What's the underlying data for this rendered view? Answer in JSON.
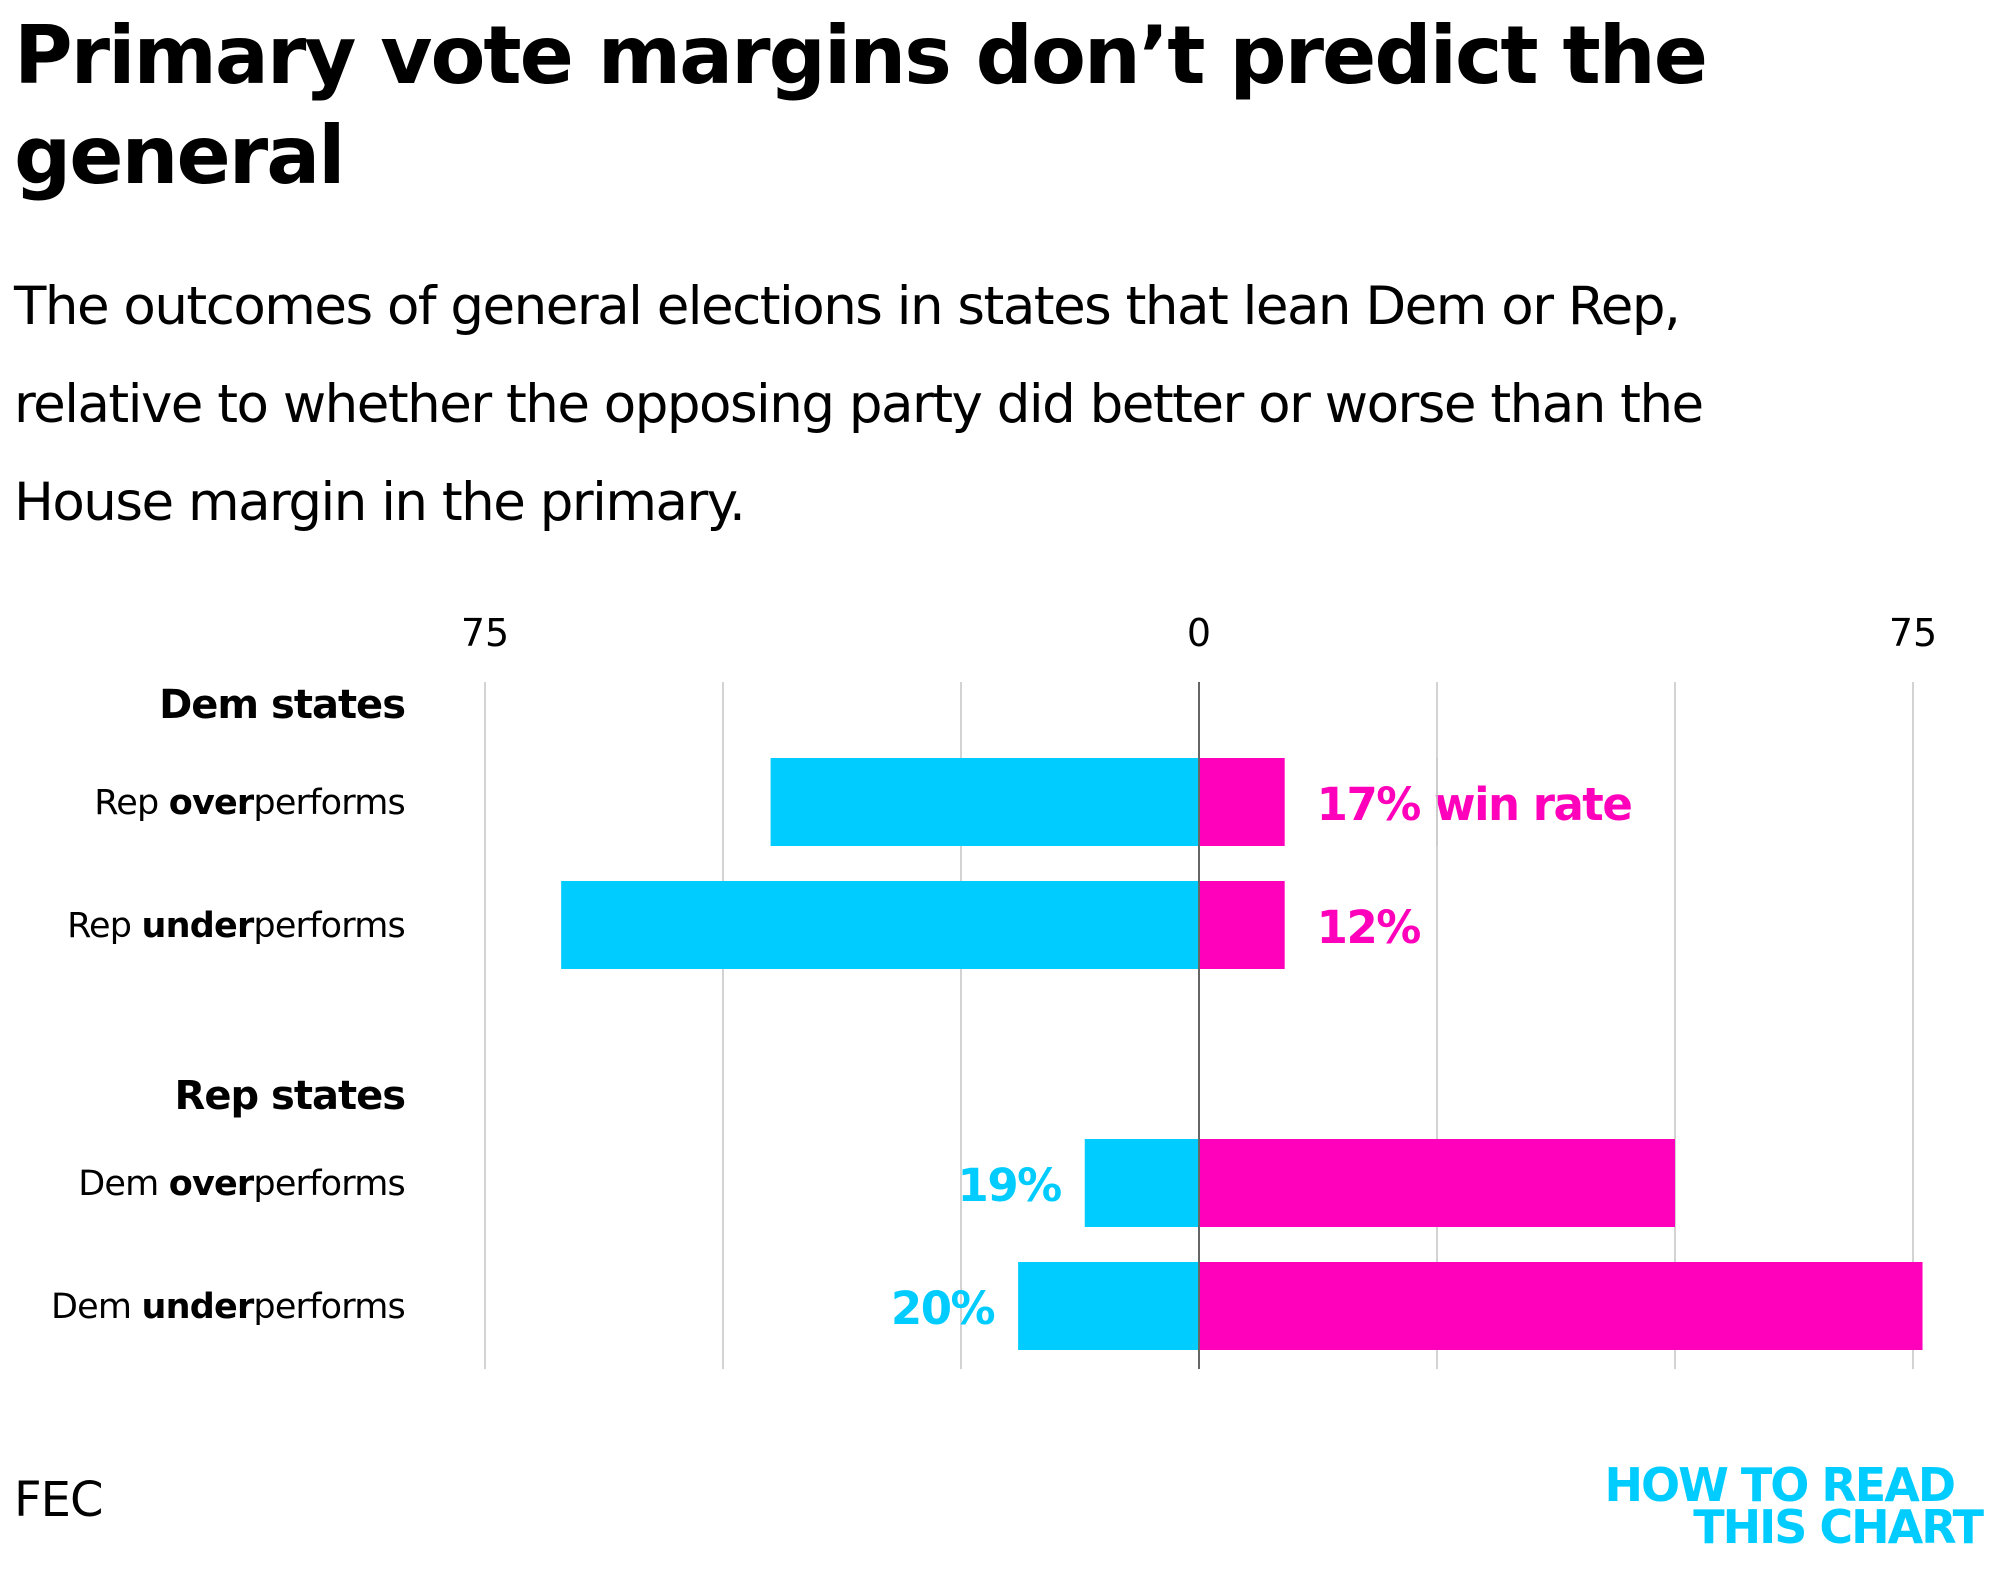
{
  "header": {
    "title": "Primary vote margins don’t predict the general",
    "subtitle": "The outcomes of general elections in states that lean Dem or Rep, relative to whether the opposing party did better or worse than the House margin in the primary."
  },
  "footer": {
    "source": "FEC",
    "logo_line1": "HOW TO READ",
    "logo_line2": "THIS CHART"
  },
  "colors": {
    "dem": "#00ccff",
    "rep": "#ff00bb",
    "grid": "#c8c8c8",
    "zero_line": "#666666"
  },
  "chart_data": {
    "type": "bar",
    "orientation": "horizontal-diverging",
    "title": "Primary vote margins don’t predict the general",
    "xlabel": "",
    "ylabel": "",
    "xlim": [
      -75,
      75
    ],
    "x_ticks": [
      -75,
      -50,
      -25,
      0,
      25,
      50,
      75
    ],
    "x_tick_labels": [
      {
        "value": -75,
        "label": "75"
      },
      {
        "value": 0,
        "label": "0"
      },
      {
        "value": 75,
        "label": "75"
      }
    ],
    "grid": true,
    "groups": [
      {
        "label": "Dem states",
        "rows": [
          {
            "prefix": "Rep ",
            "emphasis": "over",
            "suffix": "performs",
            "dem": 45,
            "rep": 9,
            "annotation": "17% win rate",
            "annotation_side": "rep"
          },
          {
            "prefix": "Rep ",
            "emphasis": "under",
            "suffix": "performs",
            "dem": 67,
            "rep": 9,
            "annotation": "12%",
            "annotation_side": "rep"
          }
        ]
      },
      {
        "label": "Rep states",
        "rows": [
          {
            "prefix": "Dem ",
            "emphasis": "over",
            "suffix": "performs",
            "dem": 12,
            "rep": 50,
            "annotation": "19%",
            "annotation_side": "dem"
          },
          {
            "prefix": "Dem ",
            "emphasis": "under",
            "suffix": "performs",
            "dem": 19,
            "rep": 76,
            "annotation": "20%",
            "annotation_side": "dem"
          }
        ]
      }
    ],
    "series": [
      {
        "name": "Dem",
        "side": "left",
        "values": [
          45,
          67,
          12,
          19
        ]
      },
      {
        "name": "Rep",
        "side": "right",
        "values": [
          9,
          9,
          50,
          76
        ]
      }
    ],
    "categories": [
      "Dem states: Rep overperforms",
      "Dem states: Rep underperforms",
      "Rep states: Dem overperforms",
      "Rep states: Dem underperforms"
    ]
  }
}
